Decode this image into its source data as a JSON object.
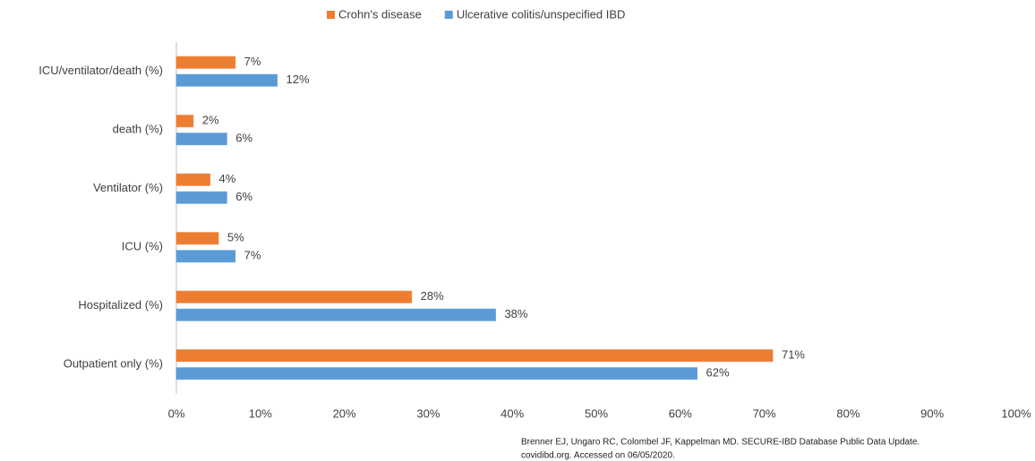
{
  "chart_data": {
    "type": "bar",
    "orientation": "horizontal",
    "categories": [
      "ICU/ventilator/death (%)",
      "death  (%)",
      "Ventilator (%)",
      "ICU (%)",
      "Hospitalized (%)",
      "Outpatient only (%)"
    ],
    "series": [
      {
        "name": "Crohn's disease",
        "color": "#ed7d31",
        "values": [
          7,
          2,
          4,
          5,
          28,
          71
        ],
        "value_labels": [
          "7%",
          "2%",
          "4%",
          "5%",
          "28%",
          "71%"
        ]
      },
      {
        "name": "Ulcerative colitis/unspecified IBD",
        "color": "#5b9bd5",
        "values": [
          12,
          6,
          6,
          7,
          38,
          62
        ],
        "value_labels": [
          "12%",
          "6%",
          "6%",
          "7%",
          "38%",
          "62%"
        ]
      }
    ],
    "xlim": [
      0,
      100
    ],
    "xticks": [
      {
        "value": 0,
        "label": "0%"
      },
      {
        "value": 10,
        "label": "10%"
      },
      {
        "value": 20,
        "label": "20%"
      },
      {
        "value": 30,
        "label": "30%"
      },
      {
        "value": 40,
        "label": "40%"
      },
      {
        "value": 50,
        "label": "50%"
      },
      {
        "value": 60,
        "label": "60%"
      },
      {
        "value": 70,
        "label": "70%"
      },
      {
        "value": 80,
        "label": "80%"
      },
      {
        "value": 90,
        "label": "90%"
      },
      {
        "value": 100,
        "label": "100%"
      }
    ],
    "legend": "top",
    "source": [
      "Brenner EJ, Ungaro RC, Colombel JF, Kappelman MD. SECURE-IBD  Database Public Data Update.",
      "covidibd.org. Accessed on 06/05/2020."
    ]
  }
}
